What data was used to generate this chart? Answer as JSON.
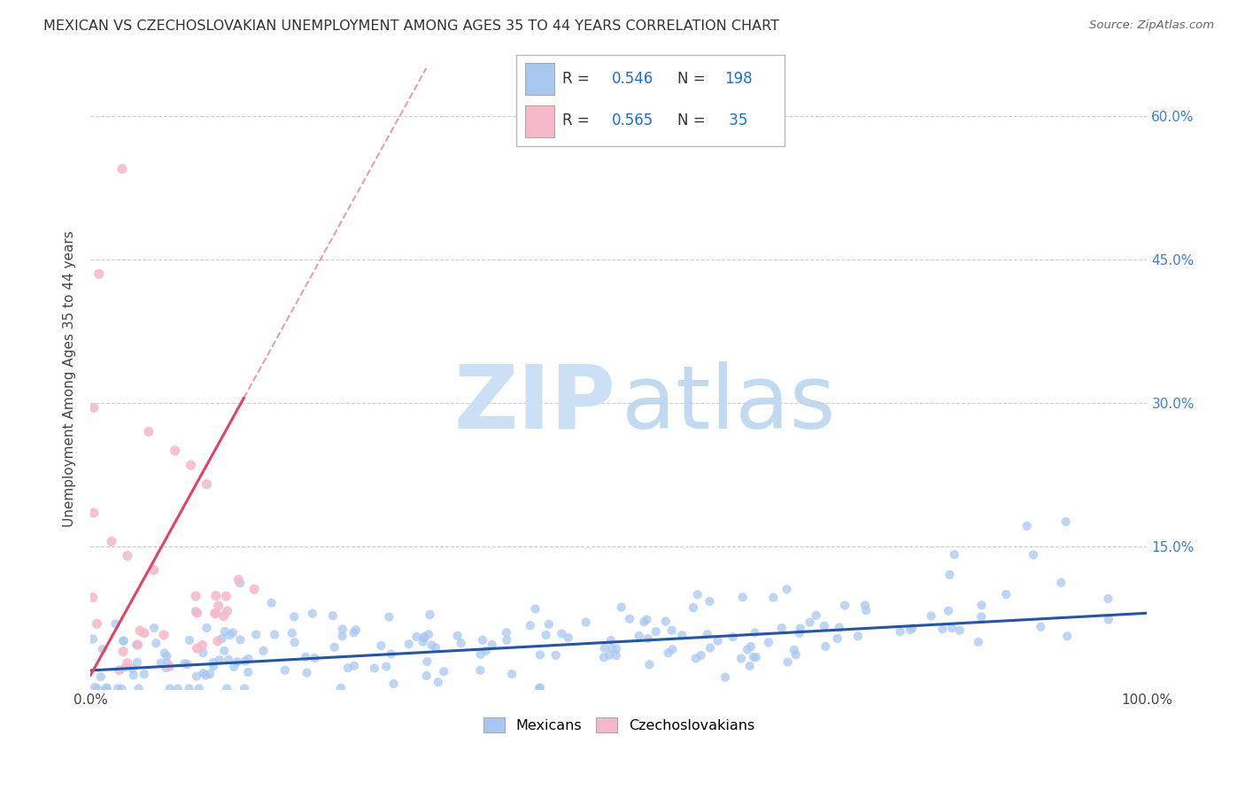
{
  "title": "MEXICAN VS CZECHOSLOVAKIAN UNEMPLOYMENT AMONG AGES 35 TO 44 YEARS CORRELATION CHART",
  "source": "Source: ZipAtlas.com",
  "ylabel": "Unemployment Among Ages 35 to 44 years",
  "xlim": [
    0,
    1.0
  ],
  "ylim": [
    0,
    0.65
  ],
  "ytick_labels": [
    "15.0%",
    "30.0%",
    "45.0%",
    "60.0%"
  ],
  "ytick_positions": [
    0.15,
    0.3,
    0.45,
    0.6
  ],
  "mexican_color": "#a8c8f0",
  "czechoslovakian_color": "#f5b8c8",
  "mexican_R": 0.546,
  "mexican_N": 198,
  "czechoslovakian_R": 0.565,
  "czechoslovakian_N": 35,
  "mexican_line_color": "#2255aa",
  "czechoslovakian_line_color": "#e84060",
  "czech_dash_color": "#e0a0b0",
  "background_color": "#ffffff",
  "grid_color": "#cccccc",
  "legend_box_color": "#1a6fd4",
  "watermark_zip_color": "#cce0f5",
  "watermark_atlas_color": "#b8d4ee"
}
